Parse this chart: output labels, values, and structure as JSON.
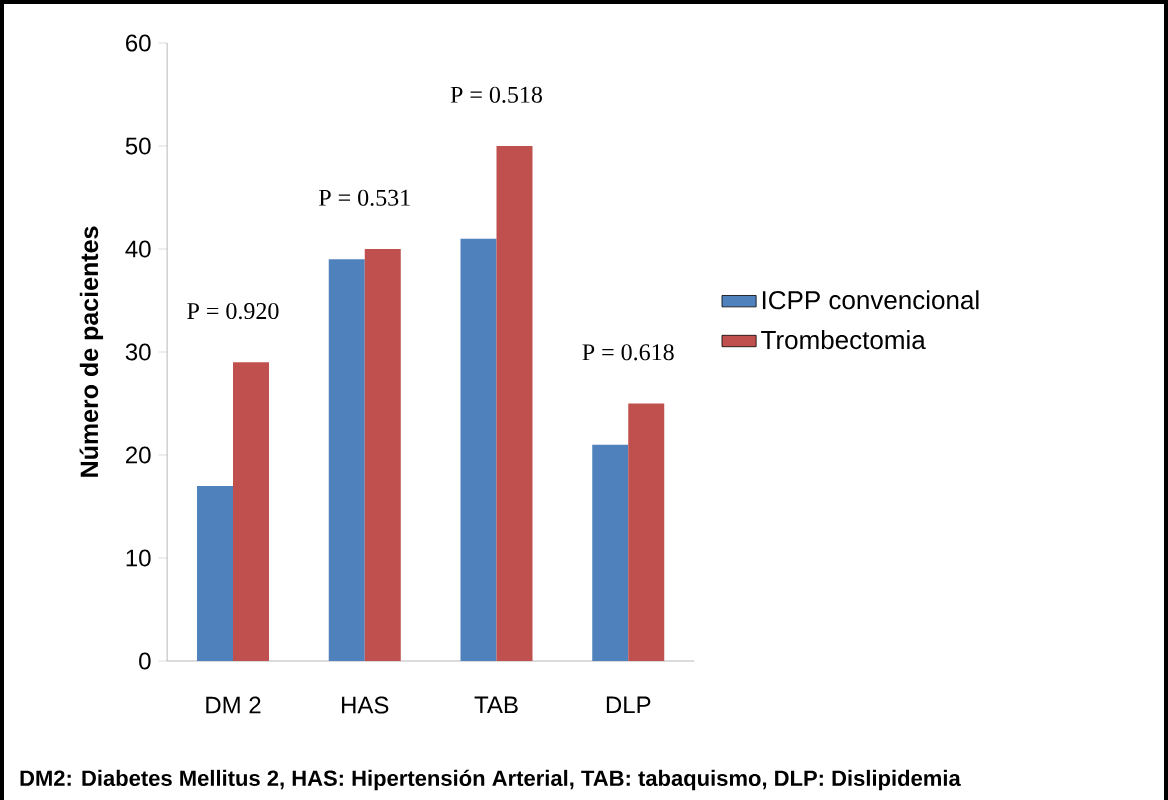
{
  "chart_data": {
    "type": "bar",
    "ylabel": "Número de pacientes",
    "categories": [
      "DM 2",
      "HAS",
      "TAB",
      "DLP"
    ],
    "series": [
      {
        "name": "ICPP convencional",
        "color": "#4f81bd",
        "values": [
          17,
          39,
          41,
          21
        ]
      },
      {
        "name": "Trombectomia",
        "color": "#c0504d",
        "values": [
          29,
          40,
          50,
          25
        ]
      }
    ],
    "ylim": [
      0,
      60
    ],
    "yticks": [
      0,
      10,
      20,
      30,
      40,
      50,
      60
    ],
    "legend": "right",
    "annotations": [
      "P = 0.920",
      "P = 0.531",
      "P = 0.518",
      "P = 0.618",
      "DM2: Diabetes Mellitus 2, HAS: Hipertensión Arterial, TAB: tabaquismo, DLP: Dislipidemia"
    ]
  }
}
